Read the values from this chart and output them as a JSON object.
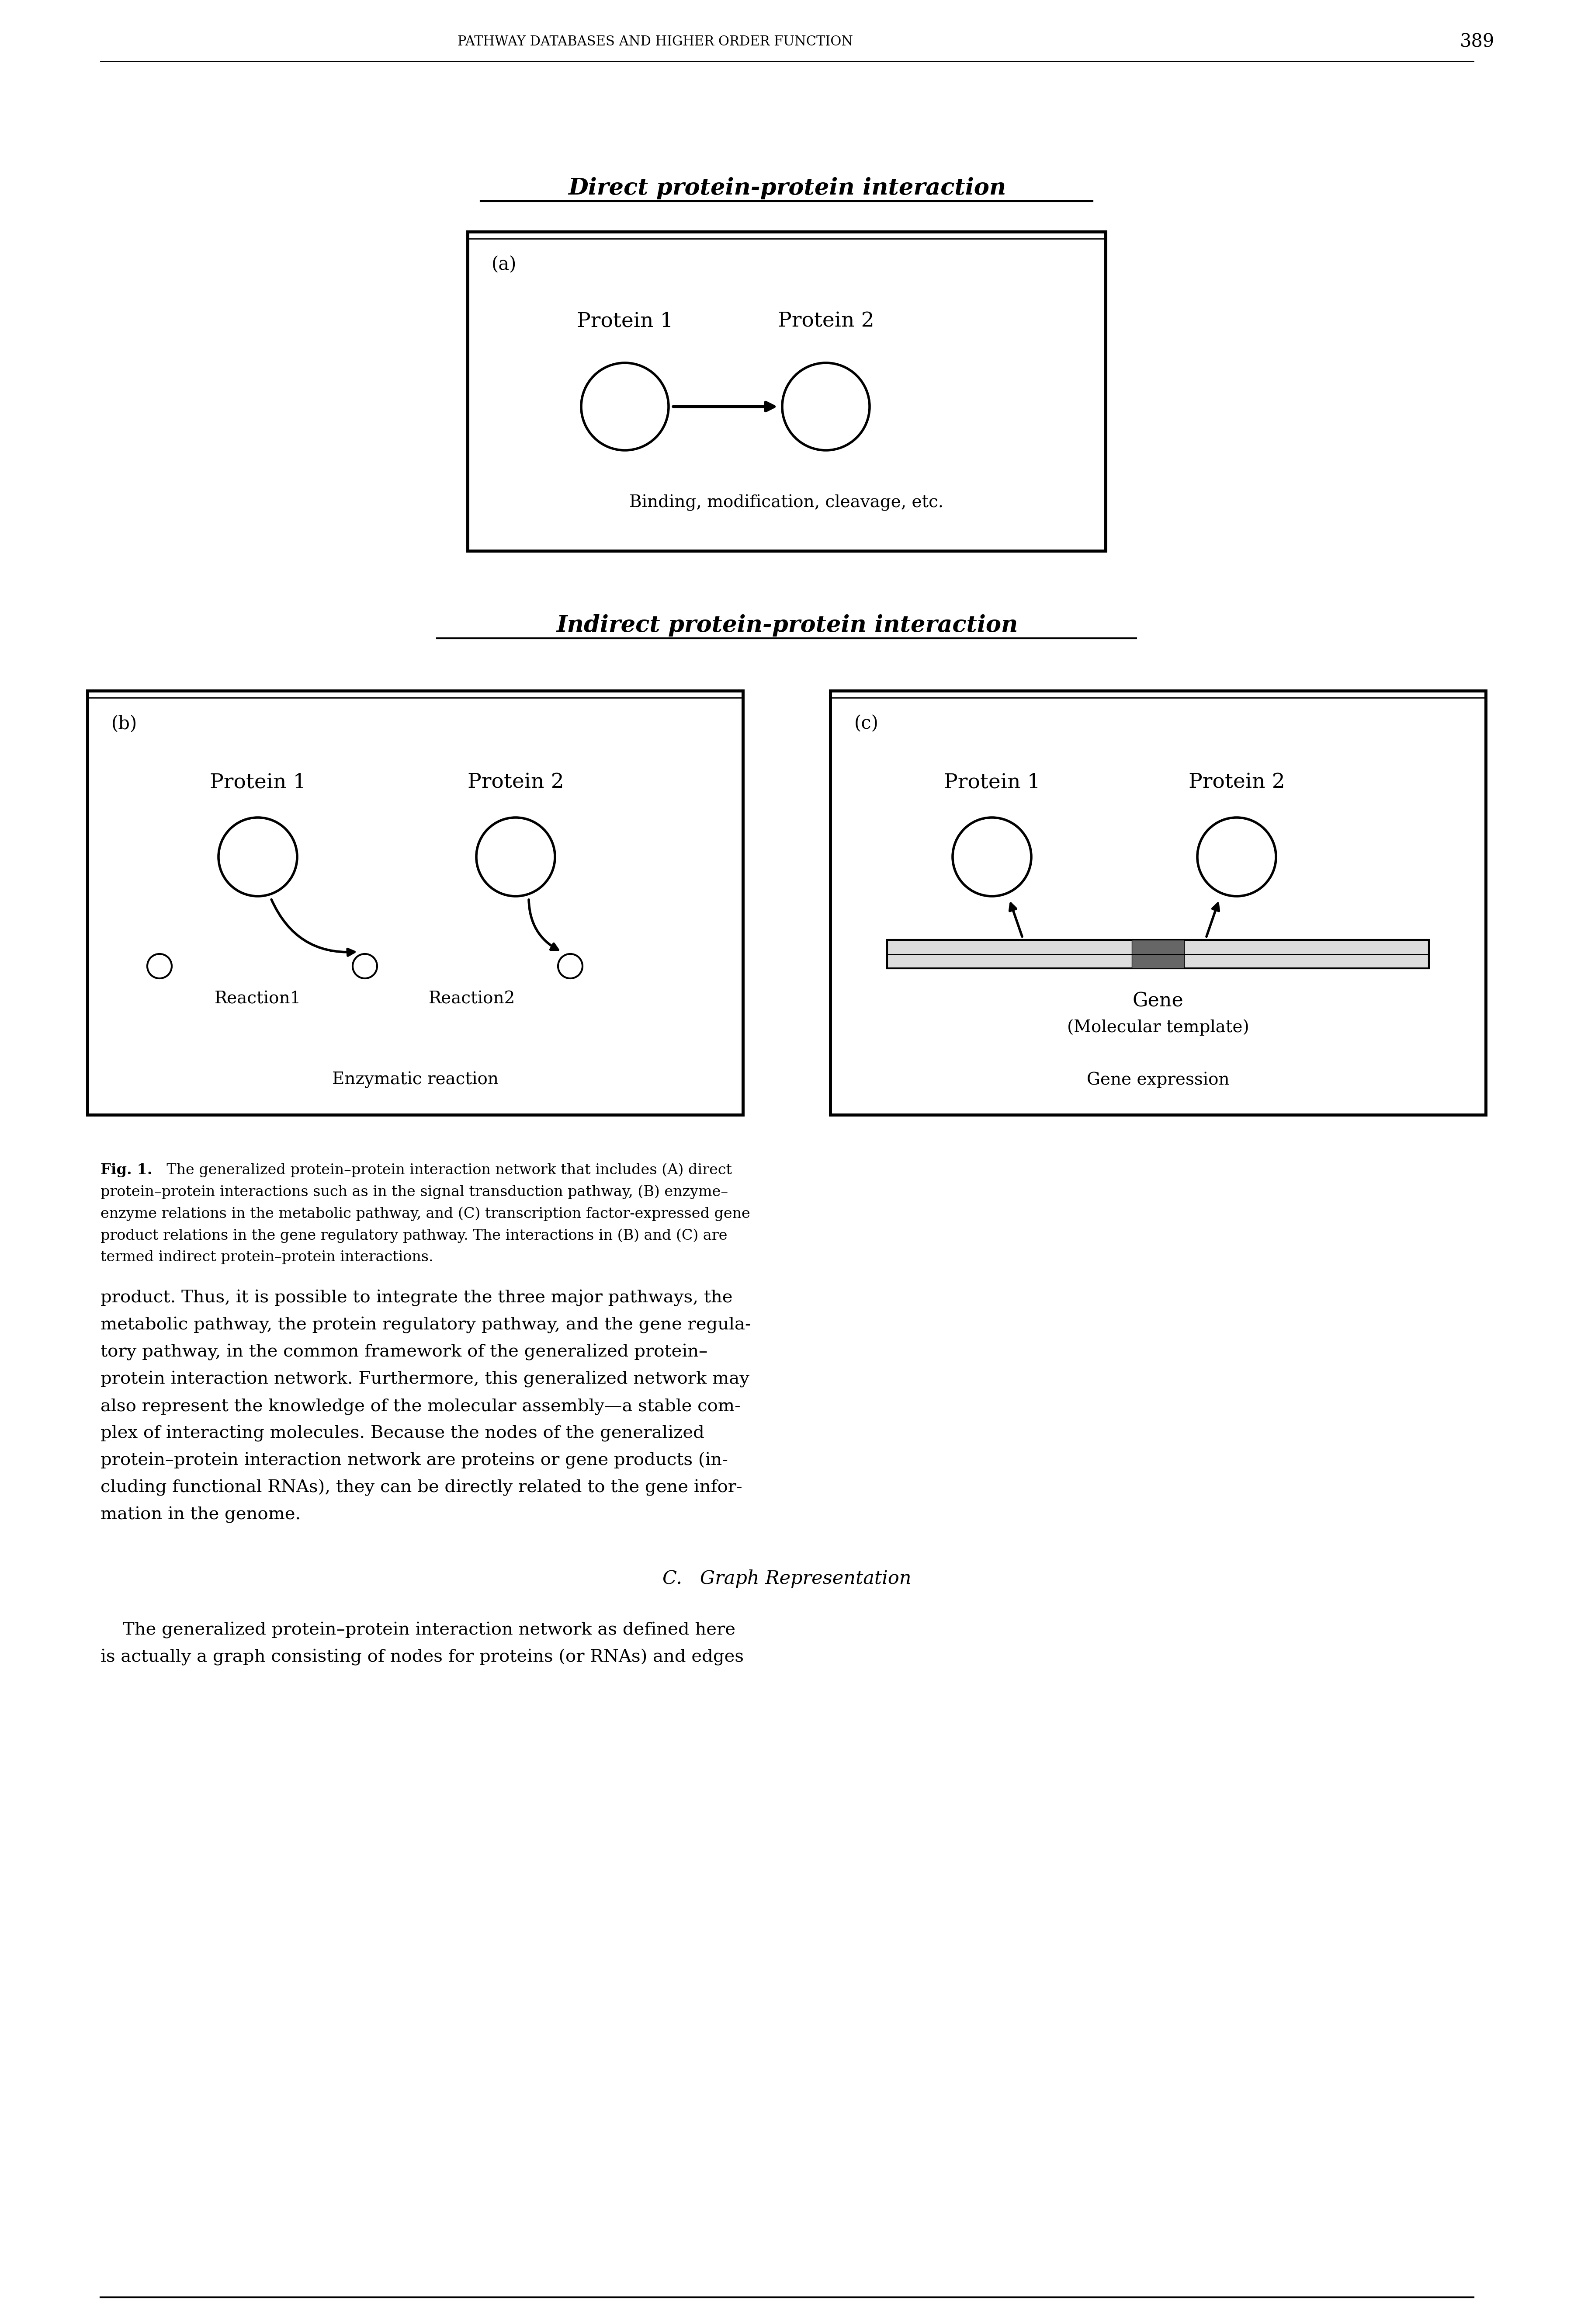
{
  "page_header": "PATHWAY DATABASES AND HIGHER ORDER FUNCTION",
  "page_number": "389",
  "title_direct": "Direct protein-protein interaction",
  "title_indirect": "Indirect protein-protein interaction",
  "fig_caption_bold": "Fig. 1.",
  "fig_caption_rest": [
    "  The generalized protein–protein interaction network that includes (A) direct",
    "protein–protein interactions such as in the signal transduction pathway, (B) enzyme–",
    "enzyme relations in the metabolic pathway, and (C) transcription factor-expressed gene",
    "product relations in the gene regulatory pathway. The interactions in (B) and (C) are",
    "termed indirect protein–protein interactions."
  ],
  "body_text_1": [
    "product. Thus, it is possible to integrate the three major pathways, the",
    "metabolic pathway, the protein regulatory pathway, and the gene regula-",
    "tory pathway, in the common framework of the generalized protein–",
    "protein interaction network. Furthermore, this generalized network may",
    "also represent the knowledge of the molecular assembly—a stable com-",
    "plex of interacting molecules. Because the nodes of the generalized",
    "protein–protein interaction network are proteins or gene products (in-",
    "cluding functional RNAs), they can be directly related to the gene infor-",
    "mation in the genome."
  ],
  "section_header": "C.   Graph Representation",
  "body_text_2": [
    "    The generalized protein–protein interaction network as defined here",
    "is actually a graph consisting of nodes for proteins (or RNAs) and edges"
  ],
  "background": "#ffffff",
  "text_color": "#000000",
  "box_a_label": "(a)",
  "box_a_protein1": "Protein 1",
  "box_a_protein2": "Protein 2",
  "box_a_bottom": "Binding, modification, cleavage, etc.",
  "box_b_label": "(b)",
  "box_b_protein1": "Protein 1",
  "box_b_protein2": "Protein 2",
  "box_b_reaction1": "Reaction1",
  "box_b_reaction2": "Reaction2",
  "box_b_bottom": "Enzymatic reaction",
  "box_c_label": "(c)",
  "box_c_protein1": "Protein 1",
  "box_c_protein2": "Protein 2",
  "box_c_gene": "Gene",
  "box_c_gene_sub": "(Molecular template)",
  "box_c_bottom": "Gene expression"
}
